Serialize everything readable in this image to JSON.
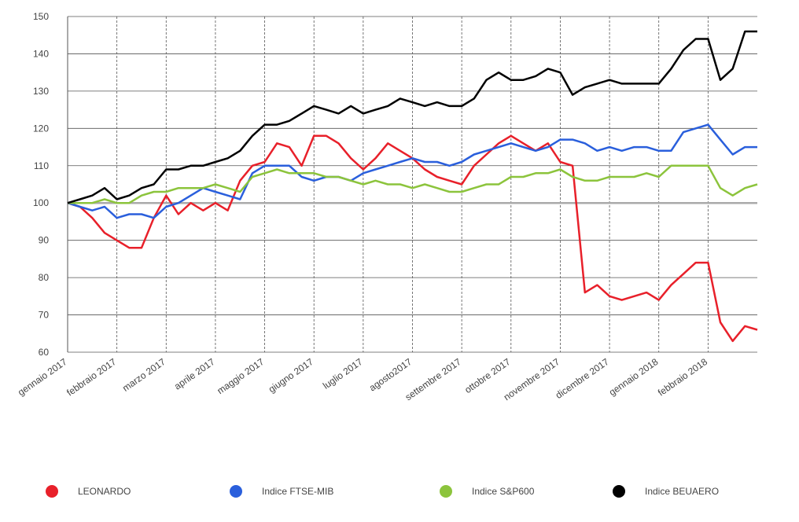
{
  "chart_data": {
    "type": "line",
    "categories": [
      "gennaio 2017",
      null,
      null,
      null,
      "febbraio 2017",
      null,
      null,
      null,
      "marzo 2017",
      null,
      null,
      null,
      "aprile 2017",
      null,
      null,
      null,
      "maggio 2017",
      null,
      null,
      null,
      "giugno 2017",
      null,
      null,
      null,
      "luglio 2017",
      null,
      null,
      null,
      "agosto2017",
      null,
      null,
      null,
      "settembre 2017",
      null,
      null,
      null,
      "ottobre 2017",
      null,
      null,
      null,
      "novembre 2017",
      null,
      null,
      null,
      "dicembre 2017",
      null,
      null,
      null,
      "gennaio 2018",
      null,
      null,
      null,
      "febbraio 2018",
      null,
      null,
      null,
      null
    ],
    "series": [
      {
        "name": "LEONARDO",
        "color": "#e8202a",
        "values": [
          100,
          99,
          96,
          92,
          90,
          88,
          88,
          96,
          102,
          97,
          100,
          98,
          100,
          98,
          106,
          110,
          111,
          116,
          115,
          110,
          118,
          118,
          116,
          112,
          109,
          112,
          116,
          114,
          112,
          109,
          107,
          106,
          105,
          110,
          113,
          116,
          118,
          116,
          114,
          116,
          111,
          110,
          76,
          78,
          75,
          74,
          75,
          76,
          74,
          78,
          81,
          84,
          84,
          68,
          63,
          67,
          66
        ]
      },
      {
        "name": "Indice FTSE-MIB",
        "color": "#2a5fdc",
        "values": [
          100,
          99,
          98,
          99,
          96,
          97,
          97,
          96,
          99,
          100,
          102,
          104,
          103,
          102,
          101,
          108,
          110,
          110,
          110,
          107,
          106,
          107,
          107,
          106,
          108,
          109,
          110,
          111,
          112,
          111,
          111,
          110,
          111,
          113,
          114,
          115,
          116,
          115,
          114,
          115,
          117,
          117,
          116,
          114,
          115,
          114,
          115,
          115,
          114,
          114,
          119,
          120,
          121,
          117,
          113,
          115,
          115
        ]
      },
      {
        "name": "Indice S&P600",
        "color": "#8cc43c",
        "values": [
          100,
          100,
          100,
          101,
          100,
          100,
          102,
          103,
          103,
          104,
          104,
          104,
          105,
          104,
          103,
          107,
          108,
          109,
          108,
          108,
          108,
          107,
          107,
          106,
          105,
          106,
          105,
          105,
          104,
          105,
          104,
          103,
          103,
          104,
          105,
          105,
          107,
          107,
          108,
          108,
          109,
          107,
          106,
          106,
          107,
          107,
          107,
          108,
          107,
          110,
          110,
          110,
          110,
          104,
          102,
          104,
          105
        ]
      },
      {
        "name": "Indice BEUAERO",
        "color": "#000000",
        "values": [
          100,
          101,
          102,
          104,
          101,
          102,
          104,
          105,
          109,
          109,
          110,
          110,
          111,
          112,
          114,
          118,
          121,
          121,
          122,
          124,
          126,
          125,
          124,
          126,
          124,
          125,
          126,
          128,
          127,
          126,
          127,
          126,
          126,
          128,
          133,
          135,
          133,
          133,
          134,
          136,
          135,
          129,
          131,
          132,
          133,
          132,
          132,
          132,
          132,
          136,
          141,
          144,
          144,
          133,
          136,
          146,
          146
        ]
      }
    ],
    "reference_line": 100,
    "ylim": [
      60,
      150
    ],
    "yticks": [
      60,
      70,
      80,
      90,
      100,
      110,
      120,
      130,
      140,
      150
    ],
    "grid": true,
    "legend": "bottom"
  }
}
